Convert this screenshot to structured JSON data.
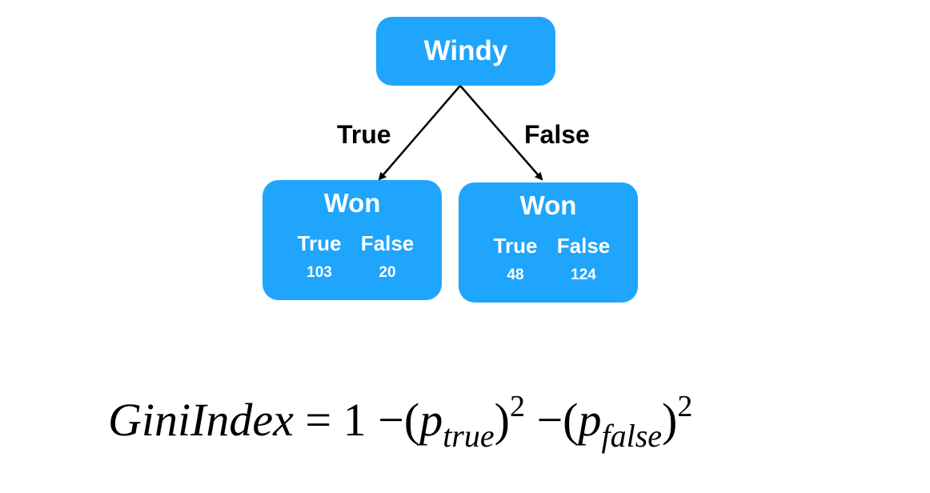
{
  "root": {
    "label": "Windy"
  },
  "edges": [
    {
      "label": "True"
    },
    {
      "label": "False"
    }
  ],
  "leaves": [
    {
      "title": "Won",
      "columns": [
        {
          "label": "True",
          "value": "103"
        },
        {
          "label": "False",
          "value": "20"
        }
      ]
    },
    {
      "title": "Won",
      "columns": [
        {
          "label": "True",
          "value": "48"
        },
        {
          "label": "False",
          "value": "124"
        }
      ]
    }
  ],
  "formula": {
    "lhs": "GiniIndex",
    "eq": "=",
    "one": "1",
    "minus": "−",
    "open": "(",
    "close": ")",
    "p": "p",
    "sub_true": "true",
    "sub_false": "false",
    "exponent": "2"
  },
  "colors": {
    "node_fill": "#1fa5fb",
    "node_text": "#ffffff",
    "edge": "#000000"
  }
}
